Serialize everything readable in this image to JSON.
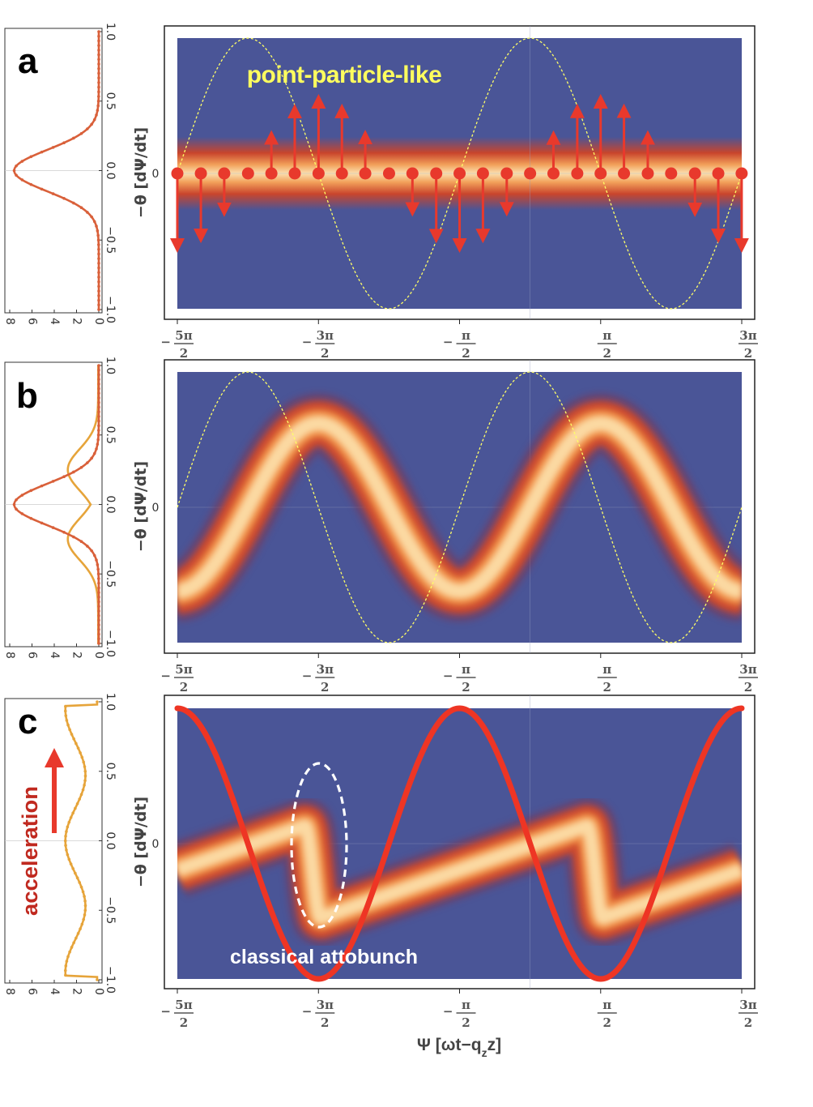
{
  "chart_data": [
    {
      "type": "heatmap",
      "panel": "a",
      "ylabel": "−θ [dΨ/dt]",
      "y_tick_labels": [
        "0"
      ],
      "x_tick_labels": [
        {
          "sign": "−",
          "num": "5π",
          "den": "2"
        },
        {
          "sign": "−",
          "num": "3π",
          "den": "2"
        },
        {
          "sign": "−",
          "num": "π",
          "den": "2"
        },
        {
          "sign": "",
          "num": "π",
          "den": "2"
        },
        {
          "sign": "",
          "num": "3π",
          "den": "2"
        }
      ],
      "x_tick_values": [
        -7.854,
        -4.712,
        -1.571,
        1.571,
        4.712
      ],
      "xlim": [
        -7.854,
        4.712
      ],
      "ylim": [
        -1,
        1
      ],
      "annotation": "point-particle-like",
      "reference_curve": "cos(x)",
      "particle_x": [
        -7.854,
        -7.33,
        -6.81,
        -6.28,
        -5.76,
        -5.24,
        -4.71,
        -4.19,
        -3.67,
        -3.14,
        -2.62,
        -2.09,
        -1.57,
        -1.05,
        -0.52,
        0.0,
        0.52,
        1.05,
        1.57,
        2.09,
        2.62,
        3.14,
        3.67,
        4.19,
        4.71
      ],
      "arrow_y": "0.62·sin(x) wherever |sin(x)| > 0.1"
    },
    {
      "type": "heatmap",
      "panel": "b",
      "ylabel": "−θ [dΨ/dt]",
      "y_tick_labels": [
        "0"
      ],
      "x_tick_labels": [
        {
          "sign": "−",
          "num": "5π",
          "den": "2"
        },
        {
          "sign": "−",
          "num": "3π",
          "den": "2"
        },
        {
          "sign": "−",
          "num": "π",
          "den": "2"
        },
        {
          "sign": "",
          "num": "π",
          "den": "2"
        },
        {
          "sign": "",
          "num": "3π",
          "den": "2"
        }
      ],
      "xlim": [
        -7.854,
        4.712
      ],
      "ylim": [
        -1,
        1
      ],
      "reference_curve": "cos(x)",
      "band_center": "0.62·sin(x)"
    },
    {
      "type": "heatmap",
      "panel": "c",
      "ylabel": "−θ [dΨ/dt]",
      "xlabel": "Ψ [ωt−q",
      "xlabel_sub": "z",
      "xlabel_end": "z]",
      "y_tick_labels": [
        "0"
      ],
      "x_tick_labels": [
        {
          "sign": "−",
          "num": "5π",
          "den": "2"
        },
        {
          "sign": "−",
          "num": "3π",
          "den": "2"
        },
        {
          "sign": "−",
          "num": "π",
          "den": "2"
        },
        {
          "sign": "",
          "num": "π",
          "den": "2"
        },
        {
          "sign": "",
          "num": "3π",
          "den": "2"
        }
      ],
      "xlim": [
        -7.854,
        4.712
      ],
      "ylim": [
        -1,
        1
      ],
      "annotation": "classical attobunch",
      "side_label": "acceleration",
      "drive_curve": "−sin(x)",
      "band_center": "sawtooth: y0 + 0.115·x within each 2π period, drop near x = −3π/2 and x = π/2"
    }
  ],
  "side_profiles": {
    "y_tick_labels": [
      "1.0",
      "0.5",
      "0.0",
      "−0.5",
      "−1.0"
    ],
    "y_tick_values": [
      1.0,
      0.5,
      0.0,
      -0.5,
      -1.0
    ],
    "x_tick_labels": [
      "8",
      "6",
      "4",
      "2",
      "0"
    ],
    "x_tick_values": [
      8,
      6,
      4,
      2,
      0
    ],
    "xlim": [
      0,
      8
    ]
  },
  "colors": {
    "background": "#4a5597",
    "particle": "#e8392c",
    "reference": "#ffff66",
    "drive": "#ee3524",
    "profile_orange": "#d9603a",
    "profile_gold": "#e6a43a",
    "annotation_yellow": "#ffff5e",
    "annotation_white": "#ffffff",
    "side_label": "#c0291f"
  }
}
